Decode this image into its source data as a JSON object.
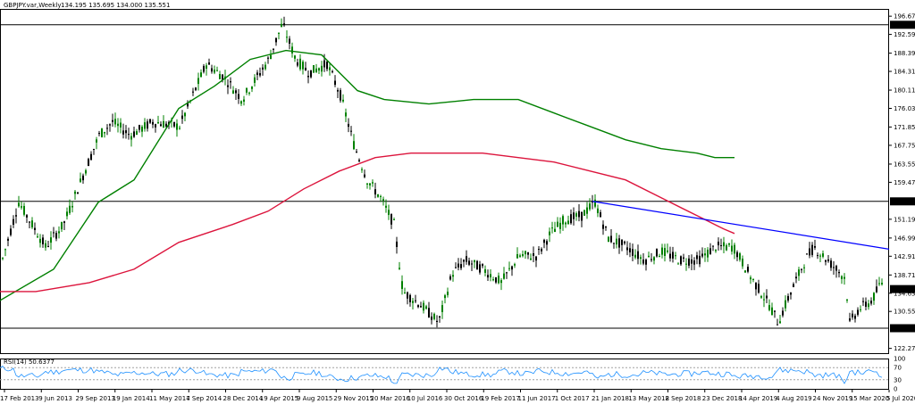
{
  "header": {
    "symbol_title": "GBPJPY.var,Weekly",
    "ohlc": "134.195 135.695 134.000 135.551"
  },
  "rsi": {
    "label": "RSI(14) 50.6377",
    "scale_labels": [
      "100",
      "70",
      "30",
      "0"
    ]
  },
  "chart_data": [
    {
      "type": "candlestick",
      "title": "GBPJPY.var,Weekly",
      "y_tick_labels": [
        "196.670",
        "192.590",
        "188.390",
        "184.310",
        "180.114",
        "176.030",
        "171.850",
        "167.750",
        "163.550",
        "159.470",
        "155.199",
        "151.190",
        "146.990",
        "142.910",
        "138.710",
        "135.551",
        "134.630",
        "130.550",
        "126.791",
        "122.270"
      ],
      "y_range": [
        121.2,
        198.3
      ],
      "x_tick_labels": [
        "17 Feb 2013",
        "9 Jun 2013",
        "29 Sep 2013",
        "19 Jan 2014",
        "11 May 2014",
        "7 Sep 2014",
        "28 Dec 2014",
        "19 Apr 2015",
        "9 Aug 2015",
        "29 Nov 2015",
        "20 Mar 2016",
        "10 Jul 2016",
        "30 Oct 2016",
        "19 Feb 2017",
        "11 Jun 2017",
        "1 Oct 2017",
        "21 Jan 2018",
        "13 May 2018",
        "2 Sep 2018",
        "23 Dec 2018",
        "14 Apr 2019",
        "4 Aug 2019",
        "24 Nov 2019",
        "15 Mar 2020",
        "5 Jul 2020"
      ],
      "horizontal_levels": [
        {
          "value": 194.744,
          "label": "194.744"
        },
        {
          "value": 155.199,
          "label": "155.199"
        },
        {
          "value": 126.791,
          "label": "126.791"
        }
      ],
      "current_price": {
        "value": 135.551,
        "label": "135.551"
      },
      "trendline": {
        "color": "#0000ff",
        "from": {
          "date": "21 Jan 2018",
          "value": 155.2
        },
        "to": {
          "date": "5 Jul 2020",
          "value": 144.5
        }
      },
      "moving_averages": [
        {
          "color": "#008000",
          "points": [
            [
              0,
              133
            ],
            [
              60,
              140
            ],
            [
              110,
              155
            ],
            [
              150,
              160
            ],
            [
              200,
              176
            ],
            [
              240,
              181
            ],
            [
              280,
              187
            ],
            [
              320,
              189
            ],
            [
              360,
              188
            ],
            [
              400,
              180
            ],
            [
              430,
              178
            ],
            [
              480,
              177
            ],
            [
              530,
              178
            ],
            [
              580,
              178
            ],
            [
              620,
              175
            ],
            [
              660,
              172
            ],
            [
              700,
              169
            ],
            [
              740,
              167
            ],
            [
              780,
              166
            ],
            [
              800,
              165
            ],
            [
              822,
              165
            ]
          ]
        },
        {
          "color": "#dc143c",
          "points": [
            [
              0,
              135
            ],
            [
              40,
              135
            ],
            [
              100,
              137
            ],
            [
              150,
              140
            ],
            [
              200,
              146
            ],
            [
              260,
              150
            ],
            [
              300,
              153
            ],
            [
              340,
              158
            ],
            [
              380,
              162
            ],
            [
              420,
              165
            ],
            [
              460,
              166
            ],
            [
              500,
              166
            ],
            [
              540,
              166
            ],
            [
              580,
              165
            ],
            [
              620,
              164
            ],
            [
              660,
              162
            ],
            [
              700,
              160
            ],
            [
              740,
              156
            ],
            [
              780,
              152
            ],
            [
              810,
              149
            ],
            [
              822,
              148
            ]
          ]
        }
      ],
      "colors": {
        "bull_candle": "#008000",
        "bear_candle": "#000000",
        "grid": "#a0a0a0"
      }
    },
    {
      "type": "line",
      "title": "RSI(14) 50.6377",
      "y_range": [
        0,
        100
      ],
      "levels": [
        70,
        30
      ],
      "color": "#1e90ff"
    }
  ]
}
